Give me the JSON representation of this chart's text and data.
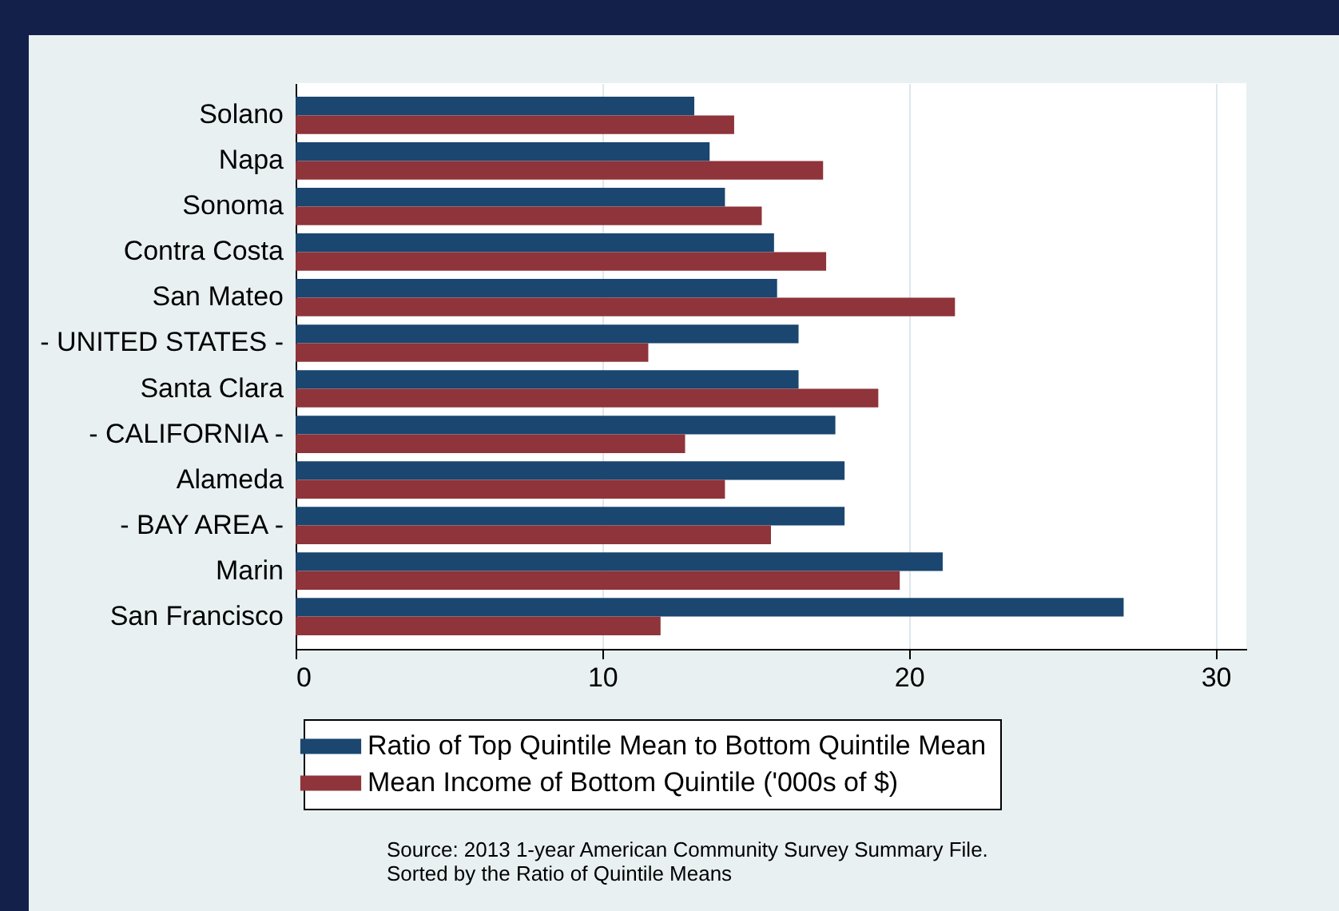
{
  "chart_data": {
    "type": "bar",
    "orientation": "horizontal",
    "categories": [
      "Solano",
      "Napa",
      "Sonoma",
      "Contra Costa",
      "San Mateo",
      "- UNITED STATES -",
      "Santa Clara",
      "- CALIFORNIA -",
      "Alameda",
      "- BAY AREA -",
      "Marin",
      "San Francisco"
    ],
    "series": [
      {
        "name": "Ratio of Top Quintile Mean to Bottom Quintile Mean",
        "color": "#1a4670",
        "values": [
          13.0,
          13.5,
          14.0,
          15.6,
          15.7,
          16.4,
          16.4,
          17.6,
          17.9,
          17.9,
          21.1,
          27.0
        ]
      },
      {
        "name": "Mean Income of Bottom Quintile ('000s of $)",
        "color": "#8e343a",
        "values": [
          14.3,
          17.2,
          15.2,
          17.3,
          21.5,
          11.5,
          19.0,
          12.7,
          14.0,
          15.5,
          19.7,
          11.9
        ]
      }
    ],
    "xlim": [
      0,
      31
    ],
    "xticks": [
      0,
      10,
      20,
      30
    ],
    "grid": "x",
    "legend": "bottom",
    "annotations": [
      "Source: 2013 1-year American Community Survey Summary File.",
      "Sorted by the Ratio of Quintile Means"
    ]
  }
}
